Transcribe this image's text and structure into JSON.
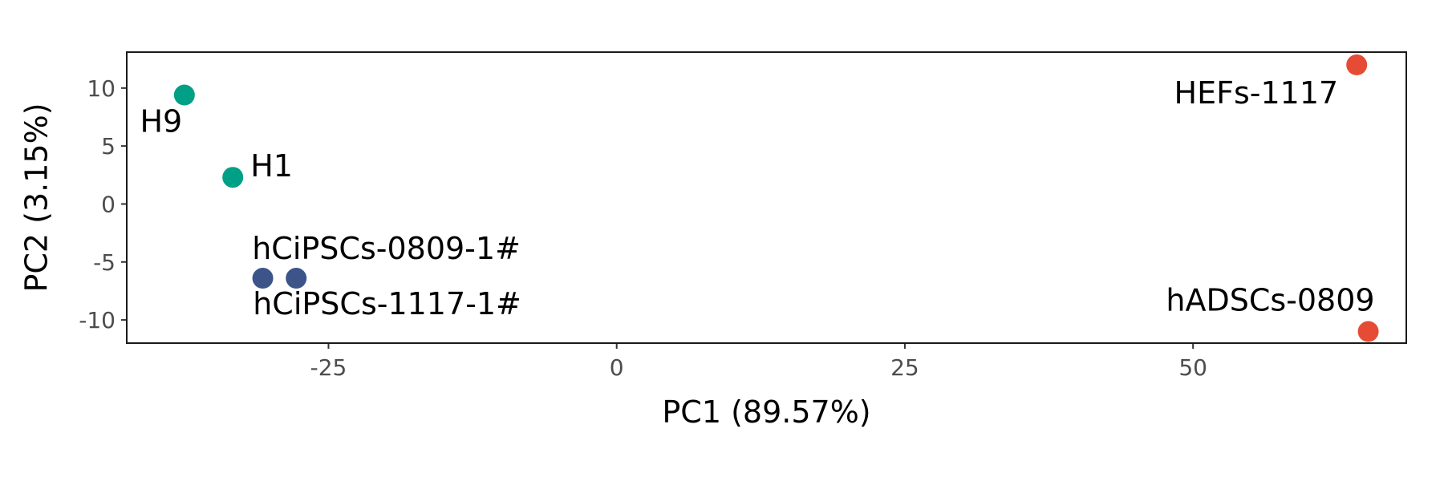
{
  "chart_data": {
    "type": "scatter",
    "title": "",
    "xlabel": "PC1 (89.57%)",
    "ylabel": "PC2 (3.15%)",
    "xlim": [
      -42.5,
      68.5
    ],
    "ylim": [
      -12,
      13.1
    ],
    "xticks": [
      -25,
      0,
      25,
      50
    ],
    "xtick_labels": [
      "-25",
      "0",
      "25",
      "50"
    ],
    "yticks": [
      -10,
      -5,
      0,
      5,
      10
    ],
    "ytick_labels": [
      "-10",
      "-5",
      "0",
      "5",
      "10"
    ],
    "grid": false,
    "legend": "none",
    "points": [
      {
        "label": "H9",
        "x": -37.5,
        "y": 9.4,
        "color": "#00A087"
      },
      {
        "label": "H1",
        "x": -33.3,
        "y": 2.3,
        "color": "#00A087"
      },
      {
        "label": "hCiPSCs-0809-1#",
        "x": -27.8,
        "y": -6.4,
        "color": "#3C5488"
      },
      {
        "label": "hCiPSCs-1117-1#",
        "x": -30.7,
        "y": -6.4,
        "color": "#3C5488"
      },
      {
        "label": "HEFs-1117",
        "x": 64.2,
        "y": 12.0,
        "color": "#E64B35"
      },
      {
        "label": "hADSCs-0809",
        "x": 65.2,
        "y": -11.0,
        "color": "#E64B35"
      }
    ]
  }
}
